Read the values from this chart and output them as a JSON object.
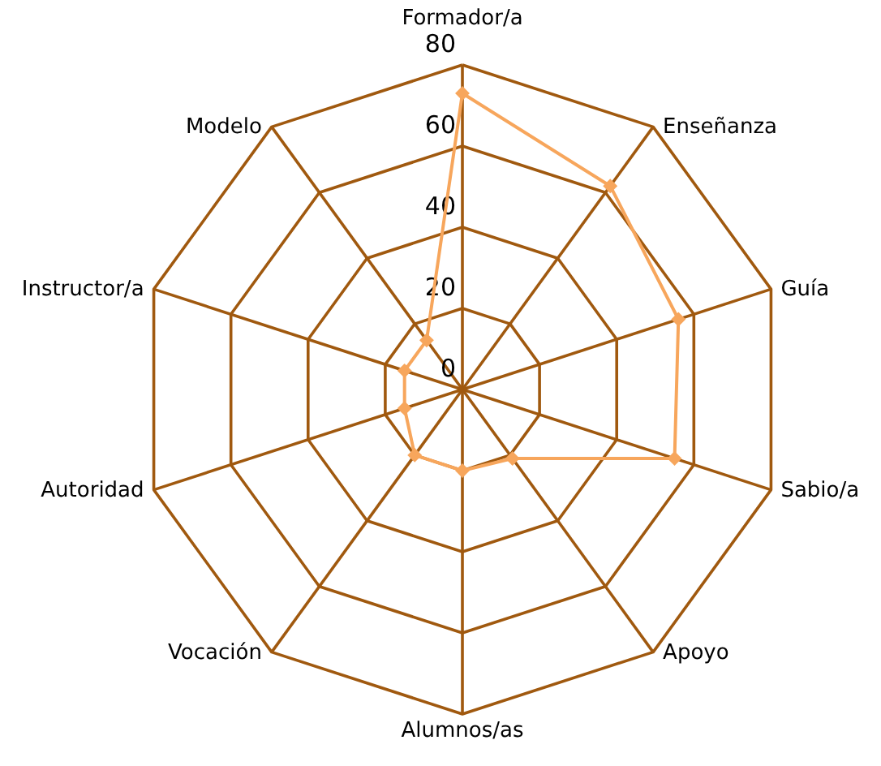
{
  "chart_data": {
    "type": "radar",
    "categories": [
      "Formador/a",
      "Enseñanza",
      "Guía",
      "Sabio/a",
      "Apoyo",
      "Alumnos/as",
      "Vocación",
      "Autoridad",
      "Instructor/a",
      "Modelo"
    ],
    "series": [
      {
        "color": "#f7a65c",
        "values": [
          73,
          62,
          56,
          55,
          21,
          20,
          20,
          15,
          15,
          15
        ]
      }
    ],
    "ylim": [
      0,
      80
    ],
    "yticks": [
      0,
      20,
      40,
      60,
      80
    ],
    "marker": "diamond"
  }
}
